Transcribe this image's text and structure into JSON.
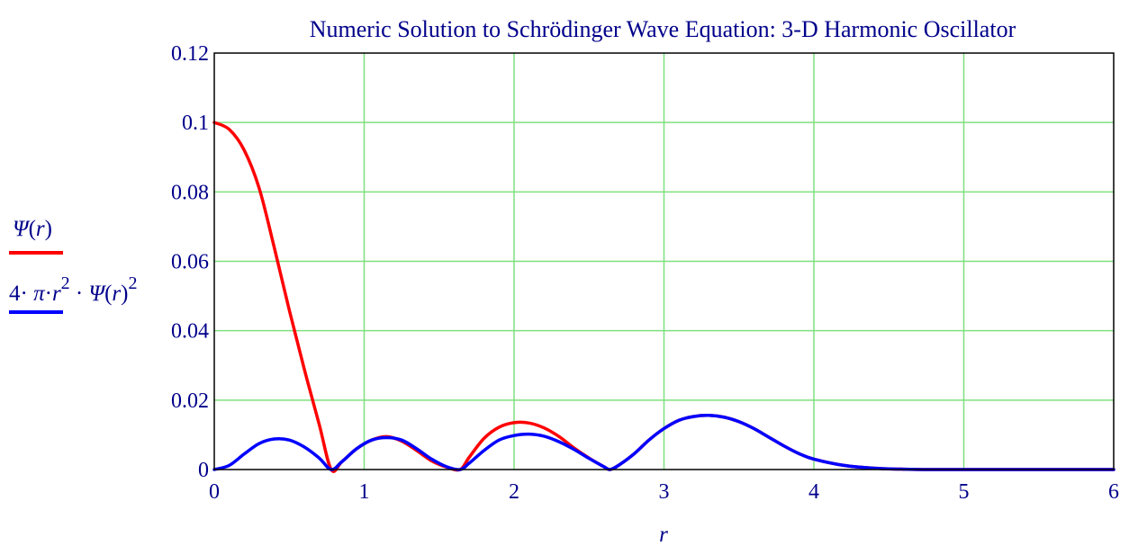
{
  "chart_data": {
    "type": "line",
    "title": "Numeric Solution to Schrödinger Wave Equation: 3-D Harmonic Oscillator",
    "xlabel": "r",
    "ylabel": "",
    "xlim": [
      0,
      6
    ],
    "ylim": [
      0,
      0.12
    ],
    "x_ticks": [
      "0",
      "1",
      "2",
      "3",
      "4",
      "5",
      "6"
    ],
    "y_ticks": [
      "0",
      "0.02",
      "0.04",
      "0.06",
      "0.08",
      "0.1",
      "0.12"
    ],
    "grid": true,
    "legend_position": "left",
    "series": [
      {
        "name": "Ψ(r)",
        "color": "#ff0000",
        "x": [
          0,
          0.1,
          0.2,
          0.3,
          0.4,
          0.5,
          0.6,
          0.7,
          0.78,
          0.85,
          0.95,
          1.05,
          1.15,
          1.25,
          1.35,
          1.45,
          1.55,
          1.64,
          1.7,
          1.8,
          1.9,
          2.0,
          2.1,
          2.2,
          2.3,
          2.4,
          2.5,
          2.6,
          2.64,
          2.7,
          2.8,
          2.9,
          3.0,
          3.1,
          3.2,
          3.3,
          3.4,
          3.5,
          3.6,
          3.7,
          3.8,
          3.9,
          4.0,
          4.2,
          4.4,
          4.6,
          4.8,
          5.0,
          5.5,
          6.0
        ],
        "y": [
          0.1,
          0.098,
          0.092,
          0.081,
          0.064,
          0.046,
          0.029,
          0.013,
          0.0,
          0.0022,
          0.006,
          0.0085,
          0.0095,
          0.0082,
          0.0055,
          0.0025,
          0.0007,
          0.0,
          0.0035,
          0.009,
          0.0122,
          0.0135,
          0.0134,
          0.012,
          0.0095,
          0.0062,
          0.0033,
          0.0008,
          0.0,
          0.0013,
          0.0045,
          0.0085,
          0.0118,
          0.0142,
          0.0153,
          0.0156,
          0.0151,
          0.0138,
          0.0118,
          0.0093,
          0.0068,
          0.0046,
          0.003,
          0.0012,
          0.0004,
          0.0001,
          0.0,
          0.0,
          0.0,
          0.0
        ]
      },
      {
        "name": "4·π·r²·Ψ(r)²",
        "color": "#0000ff",
        "x": [
          0,
          0.1,
          0.2,
          0.3,
          0.4,
          0.5,
          0.6,
          0.7,
          0.78,
          0.85,
          0.95,
          1.05,
          1.15,
          1.25,
          1.35,
          1.45,
          1.55,
          1.64,
          1.7,
          1.8,
          1.9,
          2.0,
          2.1,
          2.2,
          2.3,
          2.4,
          2.5,
          2.6,
          2.64,
          2.7,
          2.8,
          2.9,
          3.0,
          3.1,
          3.2,
          3.3,
          3.4,
          3.5,
          3.6,
          3.7,
          3.8,
          3.9,
          4.0,
          4.2,
          4.4,
          4.6,
          4.8,
          5.0,
          5.5,
          6.0
        ],
        "y": [
          0.0,
          0.0012,
          0.0045,
          0.0075,
          0.0088,
          0.0085,
          0.0065,
          0.0033,
          0.0,
          0.0022,
          0.006,
          0.0085,
          0.0092,
          0.0085,
          0.006,
          0.003,
          0.0008,
          0.0,
          0.0018,
          0.0055,
          0.0085,
          0.0098,
          0.0102,
          0.0096,
          0.008,
          0.0058,
          0.0032,
          0.0008,
          0.0,
          0.0013,
          0.0045,
          0.0085,
          0.0118,
          0.0142,
          0.0153,
          0.0156,
          0.0151,
          0.0138,
          0.0118,
          0.0093,
          0.0068,
          0.0046,
          0.003,
          0.0012,
          0.0004,
          0.0001,
          0.0,
          0.0,
          0.0,
          0.0
        ]
      }
    ]
  }
}
